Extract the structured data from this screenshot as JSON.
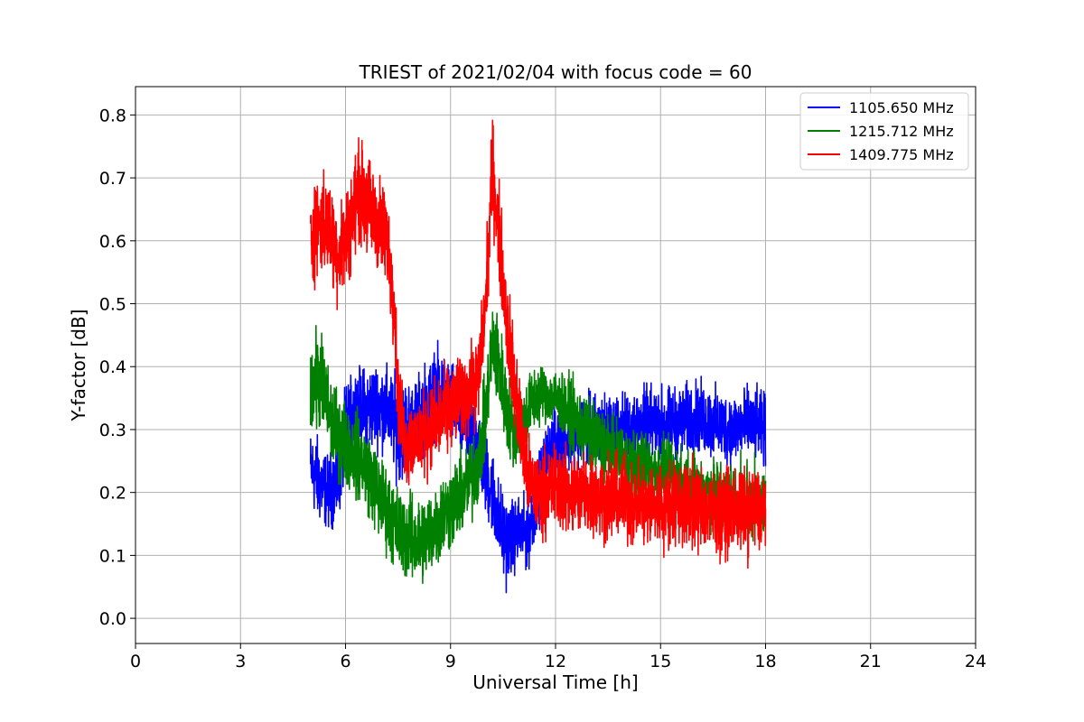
{
  "chart_data": {
    "type": "line",
    "title": "TRIEST of 2021/02/04 with focus code = 60",
    "xlabel": "Universal Time [h]",
    "ylabel": "Y-factor [dB]",
    "xlim": [
      0,
      24
    ],
    "ylim": [
      -0.04,
      0.845
    ],
    "xticks": [
      0,
      3,
      6,
      9,
      12,
      15,
      18,
      21,
      24
    ],
    "yticks": [
      0.0,
      0.1,
      0.2,
      0.3,
      0.4,
      0.5,
      0.6,
      0.7,
      0.8
    ],
    "xtick_labels": [
      "0",
      "3",
      "6",
      "9",
      "12",
      "15",
      "18",
      "21",
      "24"
    ],
    "ytick_labels": [
      "0.0",
      "0.1",
      "0.2",
      "0.3",
      "0.4",
      "0.5",
      "0.6",
      "0.7",
      "0.8"
    ],
    "grid": true,
    "legend_position": "top-right",
    "series": [
      {
        "name": "1105.650 MHz",
        "color": "#0000ff",
        "x": [
          5.0,
          5.2,
          5.5,
          5.8,
          6.0,
          6.3,
          6.6,
          6.9,
          7.2,
          7.5,
          7.8,
          8.0,
          8.3,
          8.6,
          8.9,
          9.2,
          9.5,
          9.8,
          10.0,
          10.2,
          10.4,
          10.6,
          10.8,
          11.0,
          11.2,
          11.5,
          11.8,
          12.0,
          12.5,
          13.0,
          13.5,
          14.0,
          14.5,
          15.0,
          15.5,
          16.0,
          16.5,
          17.0,
          17.5,
          18.0
        ],
        "y": [
          0.24,
          0.22,
          0.2,
          0.22,
          0.3,
          0.34,
          0.33,
          0.34,
          0.33,
          0.3,
          0.3,
          0.31,
          0.34,
          0.36,
          0.35,
          0.33,
          0.3,
          0.28,
          0.23,
          0.2,
          0.15,
          0.12,
          0.13,
          0.14,
          0.13,
          0.2,
          0.26,
          0.28,
          0.29,
          0.3,
          0.3,
          0.3,
          0.31,
          0.31,
          0.31,
          0.32,
          0.31,
          0.3,
          0.31,
          0.3
        ],
        "spread": [
          0.05,
          0.06,
          0.05,
          0.06,
          0.06,
          0.05,
          0.06,
          0.06,
          0.06,
          0.07,
          0.07,
          0.06,
          0.06,
          0.06,
          0.06,
          0.06,
          0.06,
          0.06,
          0.06,
          0.06,
          0.06,
          0.06,
          0.05,
          0.05,
          0.05,
          0.05,
          0.05,
          0.05,
          0.05,
          0.05,
          0.05,
          0.05,
          0.05,
          0.05,
          0.05,
          0.05,
          0.05,
          0.05,
          0.05,
          0.05
        ]
      },
      {
        "name": "1215.712 MHz",
        "color": "#008000",
        "x": [
          5.0,
          5.2,
          5.4,
          5.6,
          5.8,
          6.0,
          6.3,
          6.6,
          6.9,
          7.2,
          7.5,
          7.8,
          8.0,
          8.3,
          8.6,
          8.9,
          9.2,
          9.5,
          9.8,
          10.0,
          10.2,
          10.4,
          10.6,
          10.8,
          11.0,
          11.3,
          11.6,
          12.0,
          12.5,
          13.0,
          13.5,
          14.0,
          14.5,
          15.0,
          15.5,
          16.0,
          16.5,
          17.0,
          17.5,
          18.0
        ],
        "y": [
          0.36,
          0.38,
          0.36,
          0.31,
          0.29,
          0.28,
          0.26,
          0.24,
          0.2,
          0.17,
          0.14,
          0.13,
          0.12,
          0.13,
          0.15,
          0.17,
          0.19,
          0.21,
          0.25,
          0.32,
          0.44,
          0.4,
          0.33,
          0.3,
          0.3,
          0.34,
          0.36,
          0.35,
          0.32,
          0.29,
          0.27,
          0.25,
          0.24,
          0.23,
          0.22,
          0.21,
          0.2,
          0.19,
          0.19,
          0.18
        ],
        "spread": [
          0.06,
          0.07,
          0.07,
          0.06,
          0.06,
          0.06,
          0.06,
          0.06,
          0.06,
          0.06,
          0.06,
          0.06,
          0.06,
          0.06,
          0.06,
          0.06,
          0.06,
          0.06,
          0.06,
          0.06,
          0.06,
          0.07,
          0.06,
          0.05,
          0.05,
          0.05,
          0.04,
          0.04,
          0.05,
          0.05,
          0.05,
          0.05,
          0.05,
          0.05,
          0.05,
          0.05,
          0.05,
          0.05,
          0.05,
          0.05
        ]
      },
      {
        "name": "1409.775 MHz",
        "color": "#ff0000",
        "x": [
          5.0,
          5.2,
          5.5,
          5.8,
          6.0,
          6.2,
          6.4,
          6.6,
          6.8,
          7.0,
          7.2,
          7.4,
          7.5,
          7.7,
          8.0,
          8.3,
          8.6,
          8.9,
          9.2,
          9.5,
          9.8,
          10.0,
          10.2,
          10.4,
          10.6,
          10.8,
          11.0,
          11.2,
          11.5,
          12.0,
          12.5,
          13.0,
          13.5,
          14.0,
          14.5,
          15.0,
          15.5,
          16.0,
          16.5,
          17.0,
          17.5,
          18.0
        ],
        "y": [
          0.6,
          0.63,
          0.62,
          0.58,
          0.6,
          0.64,
          0.68,
          0.66,
          0.64,
          0.62,
          0.6,
          0.5,
          0.35,
          0.28,
          0.28,
          0.3,
          0.31,
          0.33,
          0.35,
          0.36,
          0.38,
          0.5,
          0.72,
          0.6,
          0.48,
          0.38,
          0.3,
          0.22,
          0.2,
          0.21,
          0.2,
          0.2,
          0.19,
          0.19,
          0.18,
          0.18,
          0.18,
          0.18,
          0.17,
          0.17,
          0.17,
          0.17
        ],
        "spread": [
          0.07,
          0.07,
          0.07,
          0.07,
          0.07,
          0.07,
          0.07,
          0.07,
          0.07,
          0.07,
          0.07,
          0.06,
          0.06,
          0.06,
          0.06,
          0.06,
          0.06,
          0.06,
          0.06,
          0.06,
          0.06,
          0.06,
          0.07,
          0.07,
          0.07,
          0.07,
          0.07,
          0.06,
          0.06,
          0.06,
          0.06,
          0.06,
          0.06,
          0.06,
          0.06,
          0.06,
          0.06,
          0.06,
          0.06,
          0.06,
          0.06,
          0.06
        ]
      }
    ]
  }
}
